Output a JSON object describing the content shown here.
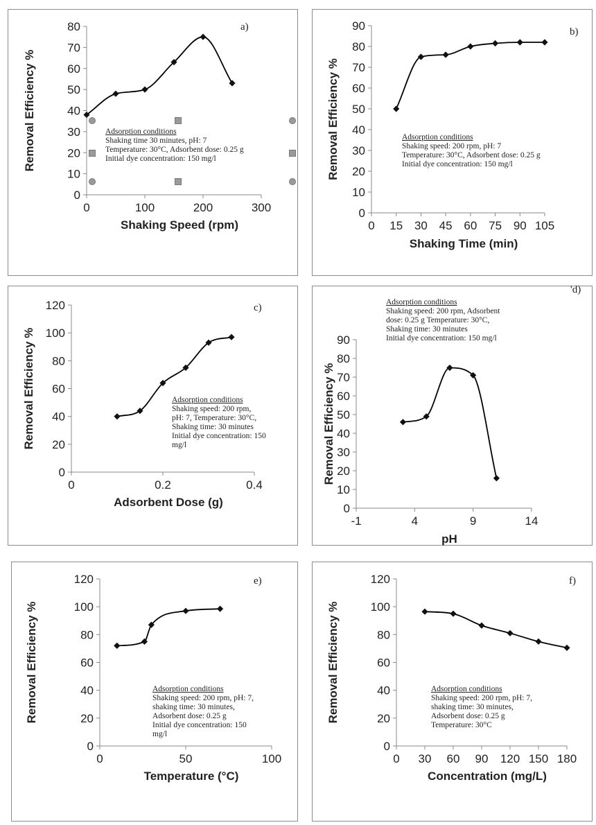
{
  "chart_data": [
    {
      "id": "a",
      "type": "line",
      "panel_label": "a)",
      "xlabel": "Shaking Speed (rpm)",
      "ylabel": "Removal Efficiency %",
      "x": [
        0,
        50,
        100,
        150,
        200,
        250
      ],
      "y": [
        38,
        48,
        50,
        63,
        75,
        53
      ],
      "xlim": [
        0,
        300
      ],
      "ylim": [
        0,
        80
      ],
      "xticks": [
        0,
        100,
        200,
        300
      ],
      "yticks": [
        0,
        10,
        20,
        30,
        40,
        50,
        60,
        70,
        80
      ],
      "grid": false,
      "note": {
        "heading": "Adsorption conditions",
        "lines": [
          "Shaking time 30 minutes, pH: 7",
          "Temperature: 30°C, Adsorbent dose: 0.25 g",
          "Initial dye concentration: 150 mg/l"
        ]
      }
    },
    {
      "id": "b",
      "type": "line",
      "panel_label": "b)",
      "xlabel": "Shaking Time (min)",
      "ylabel": "Removal Efficiency %",
      "x": [
        15,
        30,
        45,
        60,
        75,
        90,
        105
      ],
      "y": [
        50,
        75,
        76,
        80,
        81.5,
        82,
        82
      ],
      "xlim": [
        0,
        105
      ],
      "ylim": [
        0,
        90
      ],
      "xticks": [
        0,
        15,
        30,
        45,
        60,
        75,
        90,
        105
      ],
      "yticks": [
        0,
        10,
        20,
        30,
        40,
        50,
        60,
        70,
        80,
        90
      ],
      "grid": false,
      "note": {
        "heading": "Adsorption conditions",
        "lines": [
          "Shaking speed: 200 rpm, pH: 7",
          "Temperature: 30°C, Adsorbent dose: 0.25 g",
          "Initial dye concentration: 150 mg/l"
        ]
      }
    },
    {
      "id": "c",
      "type": "line",
      "panel_label": "c)",
      "xlabel": "Adsorbent Dose (g)",
      "ylabel": "Removal Efficiency %",
      "x": [
        0.1,
        0.15,
        0.2,
        0.25,
        0.3,
        0.35
      ],
      "y": [
        40,
        44,
        64,
        75,
        93,
        97
      ],
      "xlim": [
        0,
        0.4
      ],
      "ylim": [
        0,
        120
      ],
      "xticks": [
        0,
        0.2,
        0.4
      ],
      "yticks": [
        0,
        20,
        40,
        60,
        80,
        100,
        120
      ],
      "grid": false,
      "note": {
        "heading": "Adsorption conditions",
        "lines": [
          "Shaking speed: 200 rpm,",
          "pH: 7, Temperature: 30°C,",
          "Shaking time: 30 minutes",
          "Initial dye concentration: 150",
          "mg/l"
        ]
      }
    },
    {
      "id": "d",
      "type": "line",
      "panel_label": "'d)",
      "xlabel": "pH",
      "ylabel": "Removal Efficiency %",
      "x": [
        3,
        5,
        7,
        9,
        11
      ],
      "y": [
        46,
        49,
        75,
        71,
        16
      ],
      "xlim": [
        -1,
        14
      ],
      "ylim": [
        0,
        90
      ],
      "xticks": [
        -1,
        4,
        9,
        14
      ],
      "yticks": [
        0,
        10,
        20,
        30,
        40,
        50,
        60,
        70,
        80,
        90
      ],
      "grid": false,
      "note": {
        "heading": "Adsorption conditions",
        "lines": [
          "Shaking speed: 200 rpm, Adsorbent",
          "dose: 0.25 g Temperature: 30°C,",
          "Shaking time: 30 minutes",
          "Initial dye concentration: 150 mg/l"
        ]
      }
    },
    {
      "id": "e",
      "type": "line",
      "panel_label": "e)",
      "xlabel": "Temperature (°C)",
      "ylabel": "Removal Efficiency %",
      "x": [
        10,
        26,
        30,
        50,
        70
      ],
      "y": [
        72,
        75,
        87,
        97,
        98.5
      ],
      "xlim": [
        0,
        100
      ],
      "ylim": [
        0,
        120
      ],
      "xticks": [
        0,
        50,
        100
      ],
      "yticks": [
        0,
        20,
        40,
        60,
        80,
        100,
        120
      ],
      "grid": false,
      "note": {
        "heading": "Adsorption conditions",
        "lines": [
          "Shaking speed: 200 rpm, pH: 7,",
          "shaking time: 30 minutes,",
          "Adsorbent dose: 0.25 g",
          "Initial dye concentration: 150",
          "mg/l"
        ]
      }
    },
    {
      "id": "f",
      "type": "line",
      "panel_label": "f)",
      "xlabel": "Concentration (mg/L)",
      "ylabel": "Removal Efficiency %",
      "x": [
        30,
        60,
        90,
        120,
        150,
        180
      ],
      "y": [
        96.5,
        95,
        86.5,
        81,
        75,
        70.5
      ],
      "xlim": [
        0,
        180
      ],
      "ylim": [
        0,
        120
      ],
      "xticks": [
        0,
        30,
        60,
        90,
        120,
        150,
        180
      ],
      "yticks": [
        0,
        20,
        40,
        60,
        80,
        100,
        120
      ],
      "grid": false,
      "note": {
        "heading": "Adsorption conditions",
        "lines": [
          "Shaking speed: 200 rpm, pH: 7,",
          "shaking time: 30 minutes,",
          "Adsorbent dose: 0.25 g",
          "Temperature: 30°C"
        ]
      }
    }
  ]
}
